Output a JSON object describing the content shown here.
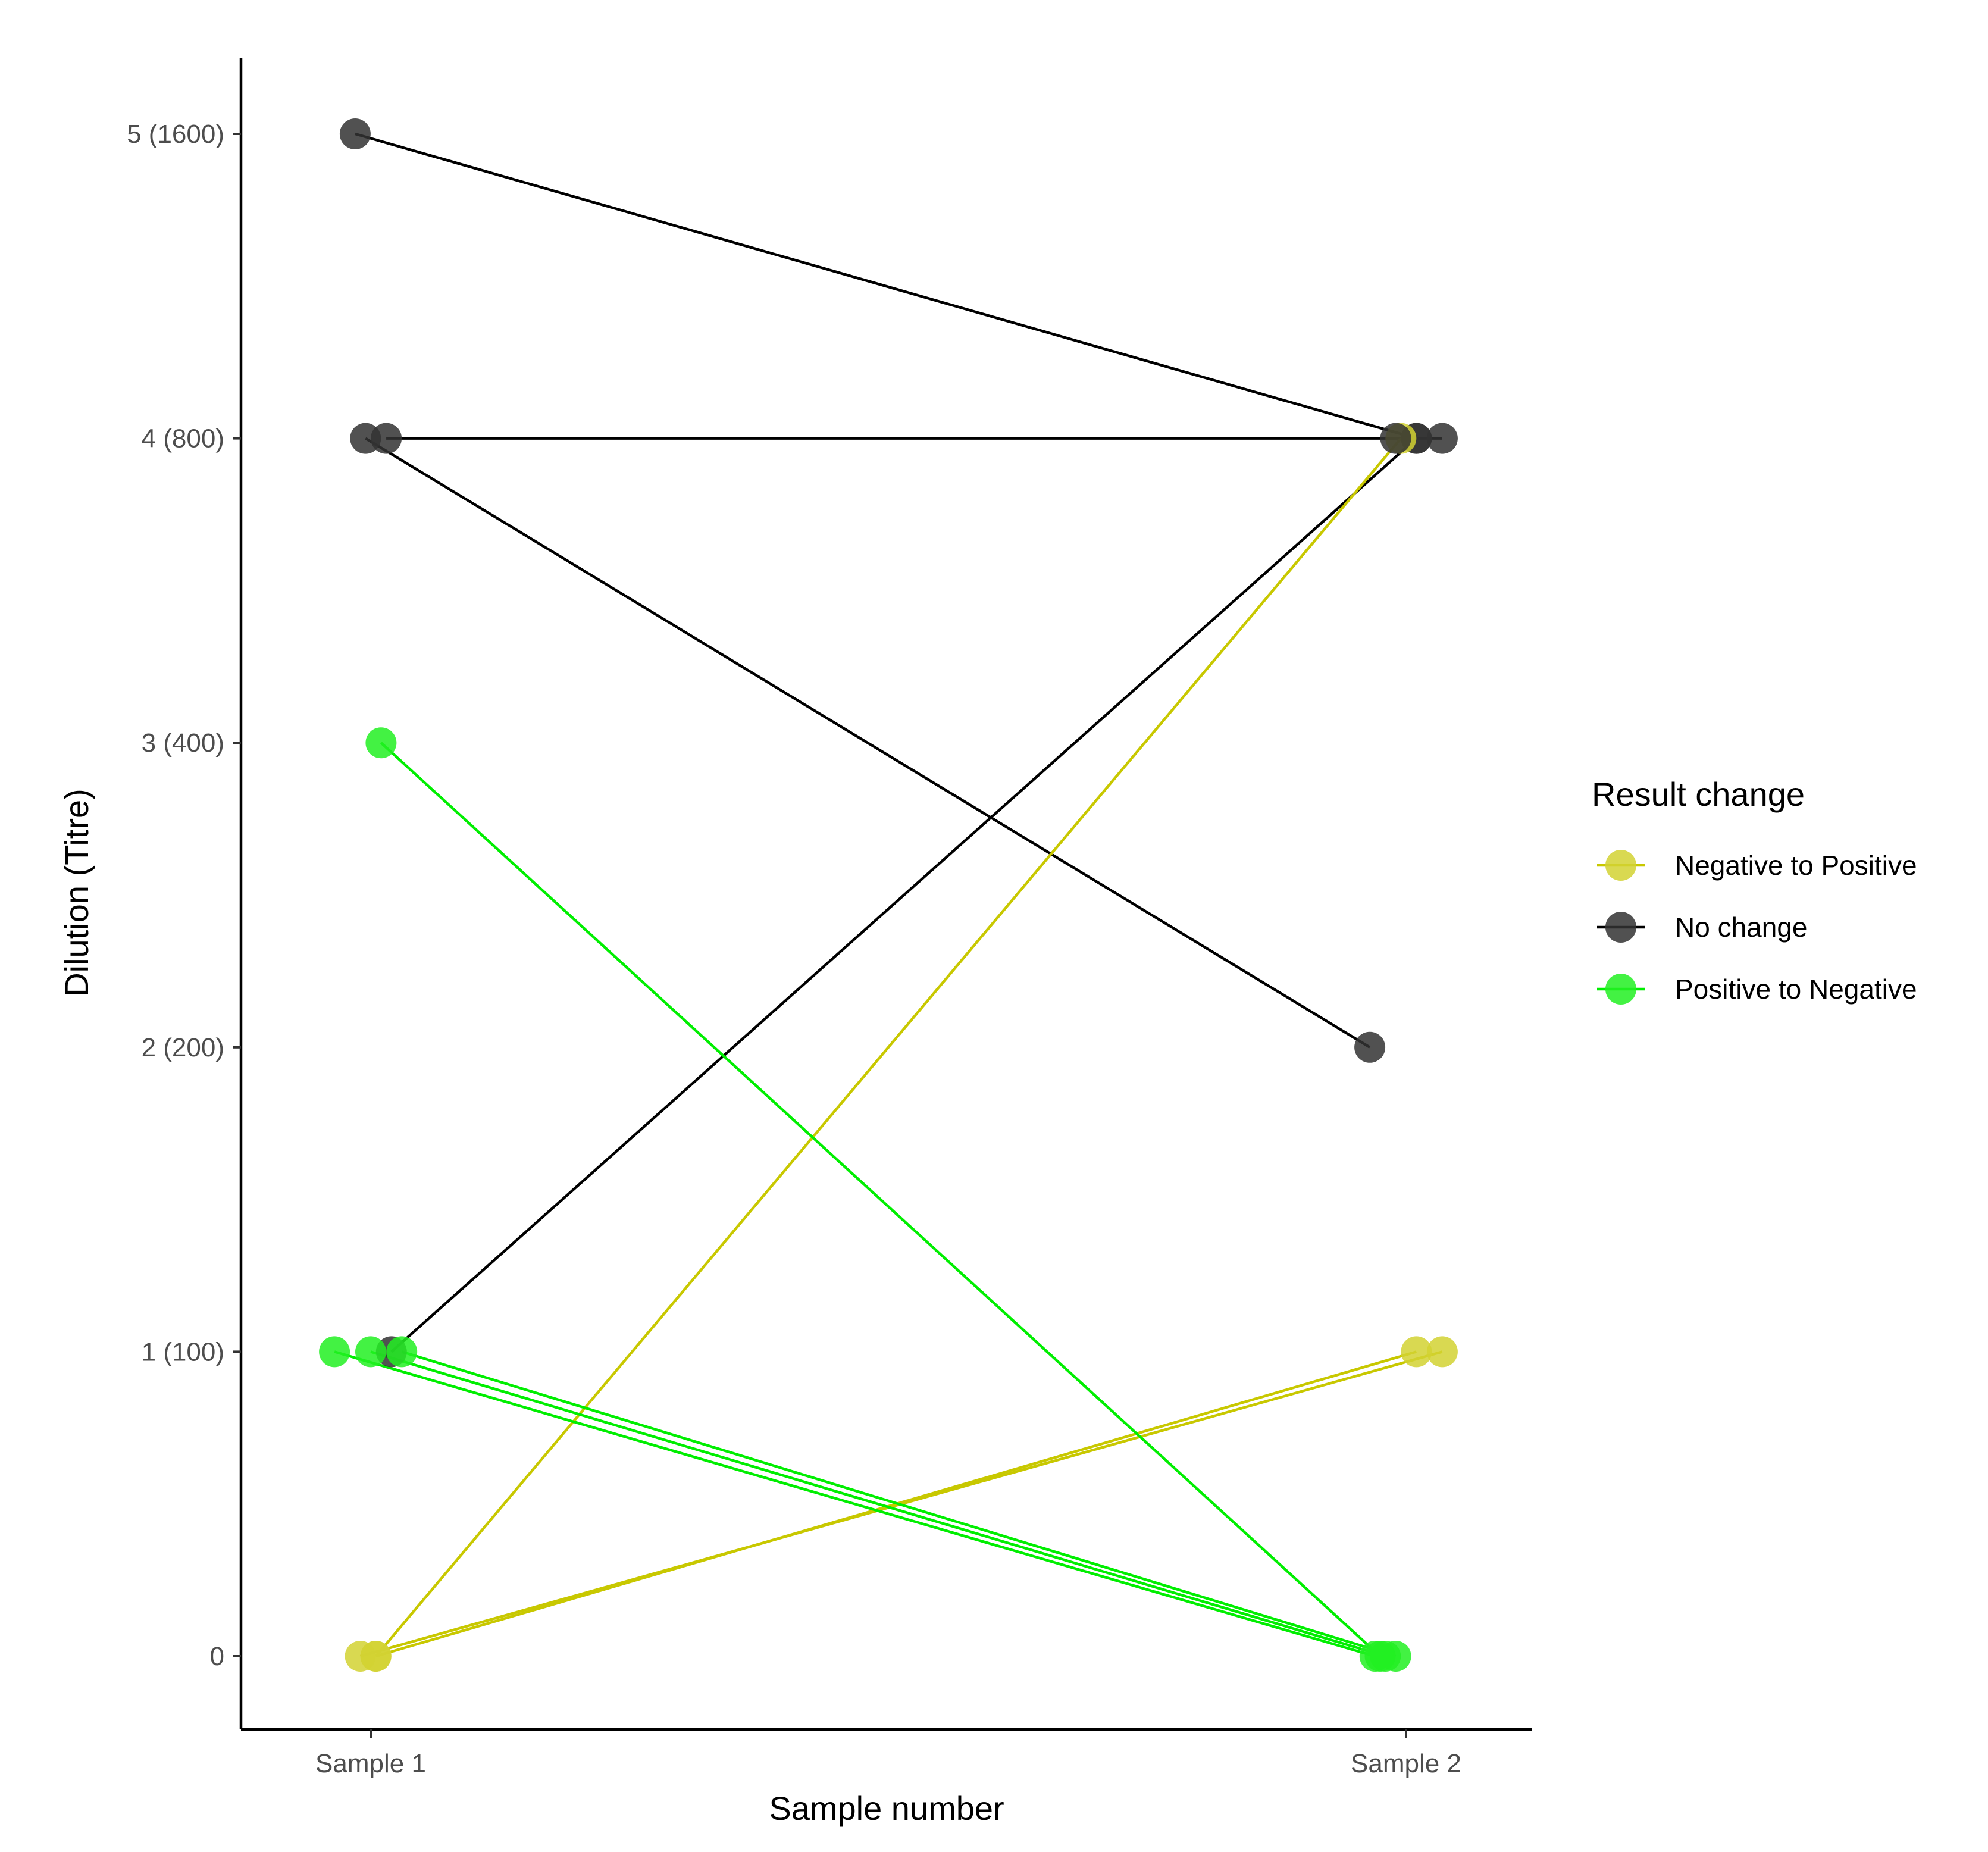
{
  "chart_data": {
    "type": "line",
    "title": "",
    "xlabel": "Sample number",
    "ylabel": "Dilution (Titre)",
    "categories": [
      "Sample 1",
      "Sample 2"
    ],
    "y_ticks": [
      {
        "value": 0,
        "label": "0"
      },
      {
        "value": 1,
        "label": "1 (100)"
      },
      {
        "value": 2,
        "label": "2 (200)"
      },
      {
        "value": 3,
        "label": "3 (400)"
      },
      {
        "value": 4,
        "label": "4 (800)"
      },
      {
        "value": 5,
        "label": "5 (1600)"
      }
    ],
    "ylim": [
      -0.25,
      5.25
    ],
    "grid": false,
    "legend": {
      "title": "Result change",
      "position": "right",
      "entries": [
        {
          "name": "Negative to Positive",
          "color": "#C8C800"
        },
        {
          "name": "No change",
          "color": "#000000"
        },
        {
          "name": "Positive to Negative",
          "color": "#00EE00"
        }
      ]
    },
    "point_colors": {
      "Negative to Positive": "#D2D232",
      "No change": "#333333",
      "Positive to Negative": "#22F022"
    },
    "pairs": [
      {
        "group": "No change",
        "x1": 0.97,
        "y1": 5,
        "x2": 3.02,
        "y2": 4
      },
      {
        "group": "No change",
        "x1": 0.99,
        "y1": 4,
        "x2": 2.93,
        "y2": 2
      },
      {
        "group": "No change",
        "x1": 1.03,
        "y1": 4,
        "x2": 3.07,
        "y2": 4
      },
      {
        "group": "No change",
        "x1": 1.04,
        "y1": 1,
        "x2": 3.02,
        "y2": 4
      },
      {
        "group": "Negative to Positive",
        "x1": 0.98,
        "y1": 0,
        "x2": 3.07,
        "y2": 1
      },
      {
        "group": "Negative to Positive",
        "x1": 1.01,
        "y1": 0,
        "x2": 3.02,
        "y2": 1
      },
      {
        "group": "Negative to Positive",
        "x1": 1.01,
        "y1": 0,
        "x2": 2.99,
        "y2": 4
      },
      {
        "group": "Positive to Negative",
        "x1": 1.02,
        "y1": 3,
        "x2": 2.95,
        "y2": 0
      },
      {
        "group": "Positive to Negative",
        "x1": 0.93,
        "y1": 1,
        "x2": 2.94,
        "y2": 0
      },
      {
        "group": "Positive to Negative",
        "x1": 1.0,
        "y1": 1,
        "x2": 2.96,
        "y2": 0
      },
      {
        "group": "Positive to Negative",
        "x1": 1.06,
        "y1": 1,
        "x2": 2.98,
        "y2": 0
      }
    ],
    "extra_points": [
      {
        "group": "No change",
        "x": 2.98,
        "y": 4
      }
    ]
  }
}
